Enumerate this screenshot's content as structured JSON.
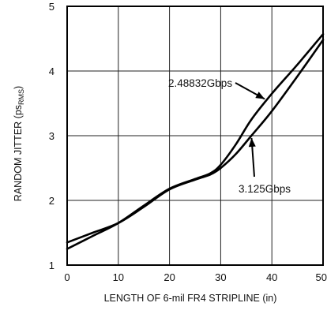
{
  "chart_data": {
    "type": "line",
    "xlabel": "LENGTH OF 6-mil FR4 STRIPLINE (in)",
    "ylabel_main": "RANDOM JITTER (ps",
    "ylabel_sub": "RMS",
    "ylabel_close": ")",
    "xlim": [
      0,
      50
    ],
    "ylim": [
      1,
      5
    ],
    "x_ticks": [
      "0",
      "10",
      "20",
      "30",
      "40",
      "50"
    ],
    "y_ticks": [
      "1",
      "2",
      "3",
      "4",
      "5"
    ],
    "grid": true,
    "series": [
      {
        "name": "2.48832Gbps",
        "x": [
          0,
          5,
          10,
          15,
          20,
          25,
          28,
          30,
          33,
          36,
          40,
          45,
          50
        ],
        "y": [
          1.25,
          1.45,
          1.65,
          1.92,
          2.18,
          2.33,
          2.42,
          2.55,
          2.87,
          3.25,
          3.65,
          4.1,
          4.57
        ]
      },
      {
        "name": "3.125Gbps",
        "x": [
          0,
          5,
          10,
          15,
          20,
          25,
          28,
          30,
          33,
          36,
          40,
          45,
          50
        ],
        "y": [
          1.35,
          1.5,
          1.65,
          1.9,
          2.17,
          2.32,
          2.4,
          2.5,
          2.72,
          3.0,
          3.38,
          3.92,
          4.48
        ]
      }
    ],
    "annotations": [
      {
        "text": "2.48832Gbps",
        "series": 0,
        "points_to_x": 39
      },
      {
        "text": "3.125Gbps",
        "series": 1,
        "points_to_x": 36
      }
    ]
  }
}
